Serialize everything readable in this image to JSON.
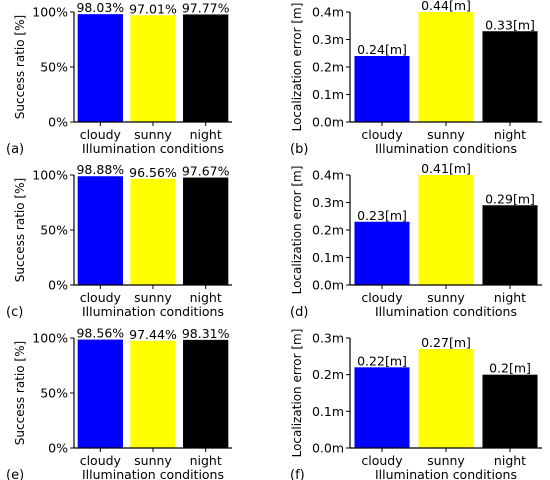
{
  "xlabel": "Illumination conditions",
  "colors": [
    "#0000ff",
    "#ffff00",
    "#000000"
  ],
  "chart_data": [
    {
      "type": "bar",
      "panel": "(a)",
      "categories": [
        "cloudy",
        "sunny",
        "night"
      ],
      "values": [
        98.03,
        97.01,
        97.77
      ],
      "value_labels": [
        "98.03%",
        "97.01%",
        "97.77%"
      ],
      "xlabel": "Illumination conditions",
      "ylabel": "Success ratio [%]",
      "ylim": [
        0,
        100
      ],
      "yticks": [
        0,
        50,
        100
      ],
      "ytick_labels": [
        "0%",
        "50%",
        "100%"
      ]
    },
    {
      "type": "bar",
      "panel": "(b)",
      "categories": [
        "cloudy",
        "sunny",
        "night"
      ],
      "values": [
        0.24,
        0.44,
        0.33
      ],
      "value_labels": [
        "0.24[m]",
        "0.44[m]",
        "0.33[m]"
      ],
      "xlabel": "Illumination conditions",
      "ylabel": "Localization error [m]",
      "ylim": [
        0,
        0.4
      ],
      "yticks": [
        0,
        0.1,
        0.2,
        0.3,
        0.4
      ],
      "ytick_labels": [
        "0.0m",
        "0.1m",
        "0.2m",
        "0.3m",
        "0.4m"
      ]
    },
    {
      "type": "bar",
      "panel": "(c)",
      "categories": [
        "cloudy",
        "sunny",
        "night"
      ],
      "values": [
        98.88,
        96.56,
        97.67
      ],
      "value_labels": [
        "98.88%",
        "96.56%",
        "97.67%"
      ],
      "xlabel": "Illumination conditions",
      "ylabel": "Success ratio [%]",
      "ylim": [
        0,
        100
      ],
      "yticks": [
        0,
        50,
        100
      ],
      "ytick_labels": [
        "0%",
        "50%",
        "100%"
      ]
    },
    {
      "type": "bar",
      "panel": "(d)",
      "categories": [
        "cloudy",
        "sunny",
        "night"
      ],
      "values": [
        0.23,
        0.41,
        0.29
      ],
      "value_labels": [
        "0.23[m]",
        "0.41[m]",
        "0.29[m]"
      ],
      "xlabel": "Illumination conditions",
      "ylabel": "Localization error [m]",
      "ylim": [
        0,
        0.4
      ],
      "yticks": [
        0,
        0.1,
        0.2,
        0.3,
        0.4
      ],
      "ytick_labels": [
        "0.0m",
        "0.1m",
        "0.2m",
        "0.3m",
        "0.4m"
      ]
    },
    {
      "type": "bar",
      "panel": "(e)",
      "categories": [
        "cloudy",
        "sunny",
        "night"
      ],
      "values": [
        98.56,
        97.44,
        98.31
      ],
      "value_labels": [
        "98.56%",
        "97.44%",
        "98.31%"
      ],
      "xlabel": "Illumination conditions",
      "ylabel": "Success ratio [%]",
      "ylim": [
        0,
        100
      ],
      "yticks": [
        0,
        50,
        100
      ],
      "ytick_labels": [
        "0%",
        "50%",
        "100%"
      ]
    },
    {
      "type": "bar",
      "panel": "(f)",
      "categories": [
        "cloudy",
        "sunny",
        "night"
      ],
      "values": [
        0.22,
        0.27,
        0.2
      ],
      "value_labels": [
        "0.22[m]",
        "0.27[m]",
        "0.2[m]"
      ],
      "xlabel": "Illumination conditions",
      "ylabel": "Localization error [m]",
      "ylim": [
        0,
        0.3
      ],
      "yticks": [
        0,
        0.1,
        0.2,
        0.3
      ],
      "ytick_labels": [
        "0.0m",
        "0.1m",
        "0.2m",
        "0.3m"
      ]
    }
  ]
}
